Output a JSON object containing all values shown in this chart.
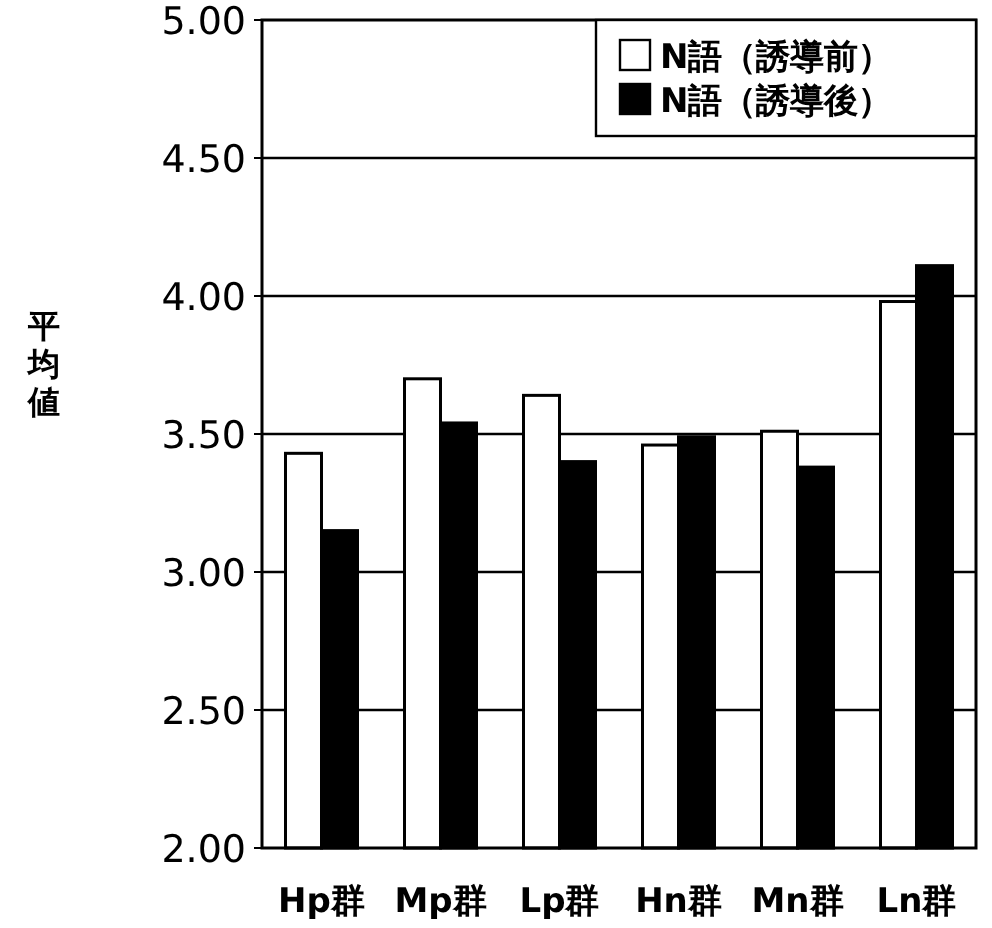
{
  "chart_data": {
    "type": "bar",
    "ylabel": "平均値",
    "categories": [
      "Hp群",
      "Mp群",
      "Lp群",
      "Hn群",
      "Mn群",
      "Ln群"
    ],
    "series": [
      {
        "name": "N語（誘導前）",
        "color": "#ffffff",
        "values": [
          3.43,
          3.7,
          3.64,
          3.46,
          3.51,
          3.98
        ]
      },
      {
        "name": "N語（誘導後）",
        "color": "#000000",
        "values": [
          3.15,
          3.54,
          3.4,
          3.49,
          3.38,
          4.11
        ]
      }
    ],
    "ylim": [
      2.0,
      5.0
    ],
    "yticks": [
      {
        "value": 2.0,
        "label": "2.00"
      },
      {
        "value": 2.5,
        "label": "2.50"
      },
      {
        "value": 3.0,
        "label": "3.00"
      },
      {
        "value": 3.5,
        "label": "3.50"
      },
      {
        "value": 4.0,
        "label": "4.00"
      },
      {
        "value": 4.5,
        "label": "4.50"
      },
      {
        "value": 5.0,
        "label": "5.00"
      }
    ],
    "grid": "y",
    "legend": "top right"
  }
}
